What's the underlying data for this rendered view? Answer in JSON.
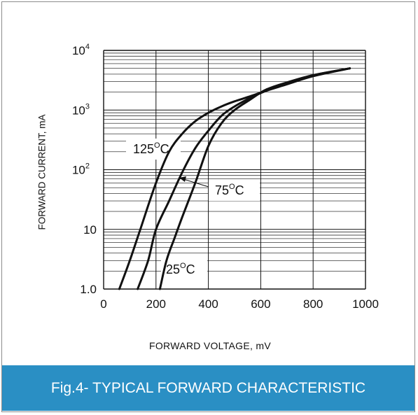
{
  "chart_data": {
    "type": "line",
    "xlabel": "FORWARD VOLTAGE, mV",
    "ylabel": "FORWARD CURRENT, mA",
    "xlim": [
      0,
      1000
    ],
    "ylim": [
      1,
      10000
    ],
    "y_scale": "log",
    "x_ticks": [
      "0",
      "200",
      "400",
      "600",
      "800",
      "1000"
    ],
    "y_ticks": [
      {
        "base": "10",
        "exp": "4"
      },
      {
        "base": "10",
        "exp": "3"
      },
      {
        "base": "10",
        "exp": "2"
      },
      {
        "base": "10",
        "exp": ""
      },
      {
        "base": "1.0",
        "exp": ""
      }
    ],
    "grid": true,
    "series": [
      {
        "name": "125°C",
        "x": [
          60,
          100,
          140,
          200,
          250,
          300,
          350,
          400,
          450,
          500,
          560,
          620,
          700,
          800,
          940
        ],
        "y": [
          1,
          3,
          10,
          60,
          200,
          400,
          650,
          900,
          1150,
          1400,
          1700,
          2100,
          2700,
          3700,
          5000
        ]
      },
      {
        "name": "75°C",
        "x": [
          130,
          170,
          200,
          250,
          300,
          350,
          400,
          450,
          500,
          560,
          620,
          700,
          800,
          940
        ],
        "y": [
          1,
          3,
          10,
          30,
          90,
          230,
          450,
          800,
          1150,
          1600,
          2100,
          2800,
          3800,
          5000
        ]
      },
      {
        "name": "25°C",
        "x": [
          215,
          240,
          270,
          300,
          350,
          400,
          450,
          500,
          560,
          620,
          700,
          800,
          940
        ],
        "y": [
          1,
          3,
          7,
          16,
          60,
          250,
          600,
          1000,
          1500,
          2200,
          2900,
          3850,
          5000
        ]
      }
    ],
    "annotations": [
      {
        "text": "125",
        "unit": "C"
      },
      {
        "text": "75",
        "unit": "C"
      },
      {
        "text": "25",
        "unit": "C"
      }
    ]
  },
  "caption": "Fig.4- TYPICAL FORWARD CHARACTERISTIC",
  "colors": {
    "banner": "#2a8fc4",
    "curve": "#111111",
    "grid": "#111111"
  }
}
